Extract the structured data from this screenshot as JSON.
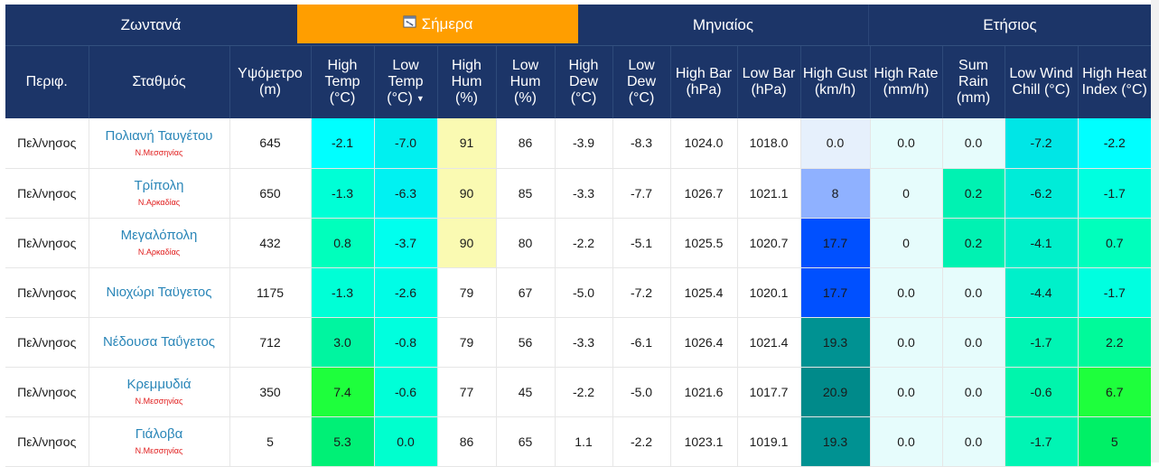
{
  "tabs": [
    {
      "label": "Ζωντανά",
      "active": false
    },
    {
      "label": "Σήμερα",
      "active": true,
      "icon": "calendar-icon"
    },
    {
      "label": "Μηνιαίος",
      "active": false
    },
    {
      "label": "Ετήσιος",
      "active": false
    }
  ],
  "columns": [
    {
      "label": "Περιφ."
    },
    {
      "label": "Σταθμός"
    },
    {
      "label": "Υψόμετρο (m)"
    },
    {
      "label": "High Temp (°C)"
    },
    {
      "label": "Low Temp (°C)",
      "sorted": true,
      "sort_glyph": "▼"
    },
    {
      "label": "High Hum (%)"
    },
    {
      "label": "Low Hum (%)"
    },
    {
      "label": "High Dew (°C)"
    },
    {
      "label": "Low Dew (°C)"
    },
    {
      "label": "High Bar (hPa)"
    },
    {
      "label": "Low Bar (hPa)"
    },
    {
      "label": "High Gust (km/h)"
    },
    {
      "label": "High Rate (mm/h)"
    },
    {
      "label": "Sum Rain (mm)"
    },
    {
      "label": "Low Wind Chill (°C)"
    },
    {
      "label": "High Heat Index (°C)"
    }
  ],
  "rows": [
    {
      "region": "Πελ/νησος",
      "station": "Πολιανή Ταυγέτου",
      "prefecture": "Ν.Μεσσηνίας",
      "values": [
        "645",
        "-2.1",
        "-7.0",
        "91",
        "86",
        "-3.9",
        "-8.3",
        "1024.0",
        "1018.0",
        "0.0",
        "0.0",
        "0.0",
        "-7.2",
        "-2.2"
      ],
      "colors": [
        "#ffffff",
        "#00ffff",
        "#00f0f0",
        "#fafab2",
        "#ffffff",
        "#ffffff",
        "#ffffff",
        "#ffffff",
        "#ffffff",
        "#e6f0fc",
        "#e6fcfc",
        "#e6fcfc",
        "#00e6e6",
        "#00ffff"
      ]
    },
    {
      "region": "Πελ/νησος",
      "station": "Τρίπολη",
      "prefecture": "Ν.Αρκαδίας",
      "values": [
        "650",
        "-1.3",
        "-6.3",
        "90",
        "85",
        "-3.3",
        "-7.7",
        "1026.7",
        "1021.1",
        "8",
        "0",
        "0.2",
        "-6.2",
        "-1.7"
      ],
      "colors": [
        "#ffffff",
        "#00ffd6",
        "#00f2f2",
        "#fafab2",
        "#ffffff",
        "#ffffff",
        "#ffffff",
        "#ffffff",
        "#ffffff",
        "#8fb1ff",
        "#e6fcfc",
        "#00f2b2",
        "#00ecd8",
        "#00ffe0"
      ]
    },
    {
      "region": "Πελ/νησος",
      "station": "Μεγαλόπολη",
      "prefecture": "Ν.Αρκαδίας",
      "values": [
        "432",
        "0.8",
        "-3.7",
        "90",
        "80",
        "-2.2",
        "-5.1",
        "1025.5",
        "1020.7",
        "17.7",
        "0",
        "0.2",
        "-4.1",
        "0.7"
      ],
      "colors": [
        "#ffffff",
        "#00ffbc",
        "#00ffee",
        "#fafab2",
        "#ffffff",
        "#ffffff",
        "#ffffff",
        "#ffffff",
        "#ffffff",
        "#0050ff",
        "#e6fcfc",
        "#00f2b2",
        "#00f0ca",
        "#00ffbc"
      ]
    },
    {
      "region": "Πελ/νησος",
      "station": "Νιοχώρι Ταϋγετος",
      "prefecture": "",
      "values": [
        "1175",
        "-1.3",
        "-2.6",
        "79",
        "67",
        "-5.0",
        "-7.2",
        "1025.4",
        "1020.1",
        "17.7",
        "0.0",
        "0.0",
        "-4.4",
        "-1.7"
      ],
      "colors": [
        "#ffffff",
        "#00ffd6",
        "#00fde6",
        "#ffffff",
        "#ffffff",
        "#ffffff",
        "#ffffff",
        "#ffffff",
        "#ffffff",
        "#0050ff",
        "#e6fcfc",
        "#e6fcfc",
        "#00f0ca",
        "#00ffe0"
      ]
    },
    {
      "region": "Πελ/νησος",
      "station": "Νέδουσα Ταΰγετος",
      "prefecture": "",
      "values": [
        "712",
        "3.0",
        "-0.8",
        "79",
        "56",
        "-3.3",
        "-6.1",
        "1026.4",
        "1021.4",
        "19.3",
        "0.0",
        "0.0",
        "-1.7",
        "2.2"
      ],
      "colors": [
        "#ffffff",
        "#00f5a0",
        "#00ffde",
        "#ffffff",
        "#ffffff",
        "#ffffff",
        "#ffffff",
        "#ffffff",
        "#ffffff",
        "#009292",
        "#e6fcfc",
        "#e6fcfc",
        "#00f5b4",
        "#00fa9a"
      ]
    },
    {
      "region": "Πελ/νησος",
      "station": "Κρεμμυδιά",
      "prefecture": "Ν.Μεσσηνίας",
      "values": [
        "350",
        "7.4",
        "-0.6",
        "77",
        "45",
        "-2.2",
        "-5.0",
        "1021.6",
        "1017.7",
        "20.9",
        "0.0",
        "0.0",
        "-0.6",
        "6.7"
      ],
      "colors": [
        "#ffffff",
        "#1eff3c",
        "#00ffd8",
        "#ffffff",
        "#ffffff",
        "#ffffff",
        "#ffffff",
        "#ffffff",
        "#ffffff",
        "#008a8a",
        "#e6fcfc",
        "#e6fcfc",
        "#00f5ac",
        "#1eff3c"
      ]
    },
    {
      "region": "Πελ/νησος",
      "station": "Γιάλοβα",
      "prefecture": "Ν.Μεσσηνίας",
      "values": [
        "5",
        "5.3",
        "0.0",
        "86",
        "65",
        "1.1",
        "-2.2",
        "1023.1",
        "1019.1",
        "19.3",
        "0.0",
        "0.0",
        "-1.7",
        "5"
      ],
      "colors": [
        "#ffffff",
        "#00f076",
        "#00ffce",
        "#ffffff",
        "#ffffff",
        "#ffffff",
        "#ffffff",
        "#ffffff",
        "#ffffff",
        "#009292",
        "#e6fcfc",
        "#e6fcfc",
        "#00f5b4",
        "#00f066"
      ]
    }
  ]
}
